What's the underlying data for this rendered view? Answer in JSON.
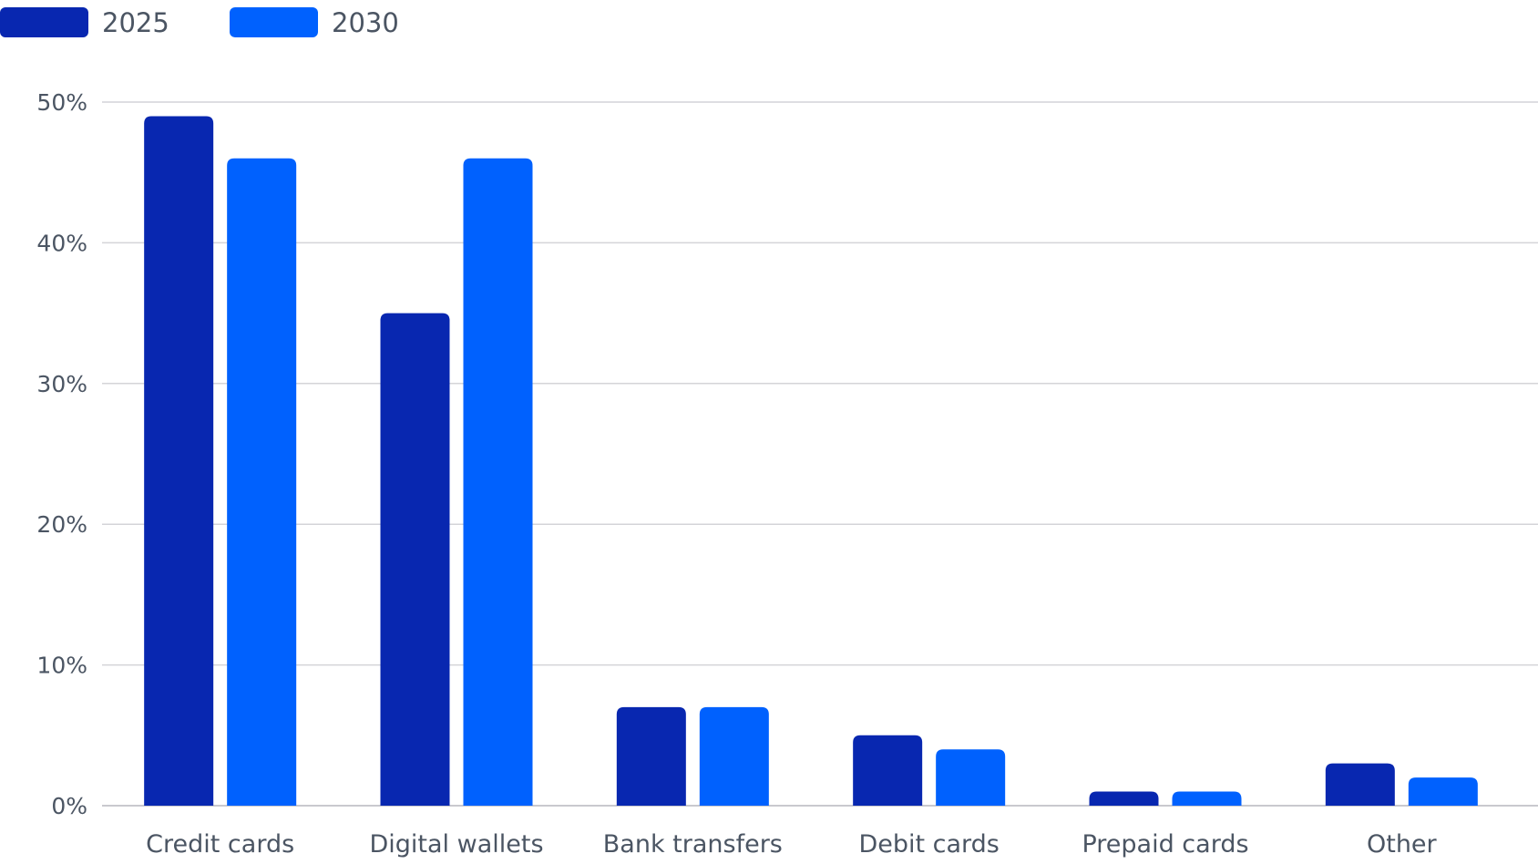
{
  "chart_data": {
    "type": "bar",
    "categories": [
      "Credit cards",
      "Digital wallets",
      "Bank transfers",
      "Debit cards",
      "Prepaid cards",
      "Other"
    ],
    "series": [
      {
        "name": "2025",
        "values": [
          49,
          35,
          7,
          5,
          1,
          3
        ],
        "color": "#0827b0"
      },
      {
        "name": "2030",
        "values": [
          46,
          46,
          7,
          4,
          1,
          2
        ],
        "color": "#0061fe"
      }
    ],
    "yticks": [
      0,
      10,
      20,
      30,
      40,
      50
    ],
    "ytick_labels": [
      "0%",
      "10%",
      "20%",
      "30%",
      "40%",
      "50%"
    ],
    "ylim": [
      0,
      50
    ],
    "grid": true,
    "legend_position": "top-left",
    "title": "",
    "xlabel": "",
    "ylabel": ""
  }
}
